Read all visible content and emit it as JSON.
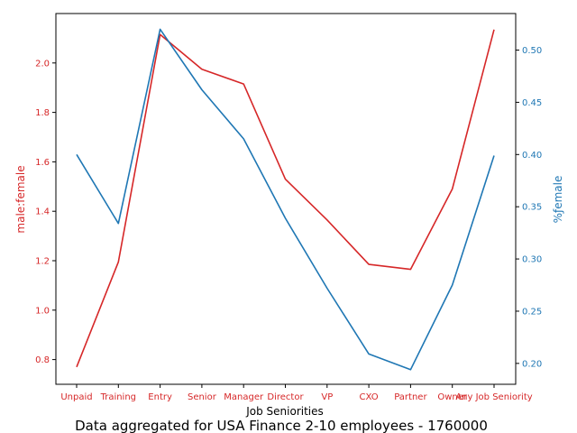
{
  "chart_data": {
    "type": "line",
    "title": "",
    "caption": "Data aggregated for USA Finance 2-10 employees - 1760000",
    "xlabel": "Job Seniorities",
    "ylabel_left": "male:female",
    "ylabel_right": "%ƒemale",
    "categories": [
      "Unpaid",
      "Training",
      "Entry",
      "Senior",
      "Manager",
      "Director",
      "VP",
      "CXO",
      "Partner",
      "Owner",
      "Any Job Seniority"
    ],
    "series": [
      {
        "name": "",
        "axis": "left",
        "color": "#d62728",
        "values": [
          0.77,
          1.195,
          2.115,
          1.975,
          1.915,
          1.53,
          1.365,
          1.185,
          1.165,
          1.49,
          2.135
        ]
      },
      {
        "name": "",
        "axis": "right",
        "color": "#1f77b4",
        "values": [
          0.4,
          0.334,
          0.52,
          0.462,
          0.415,
          0.339,
          0.272,
          0.209,
          0.194,
          0.275,
          0.399
        ]
      }
    ],
    "y_left": {
      "ticks": [
        "0.8",
        "1.0",
        "1.2",
        "1.4",
        "1.6",
        "1.8",
        "2.0"
      ],
      "range": [
        0.7,
        2.2
      ]
    },
    "y_right": {
      "ticks": [
        "0.20",
        "0.25",
        "0.30",
        "0.35",
        "0.40",
        "0.45",
        "0.50"
      ],
      "range": [
        0.18,
        0.535
      ]
    },
    "grid": false,
    "legend": "none"
  }
}
